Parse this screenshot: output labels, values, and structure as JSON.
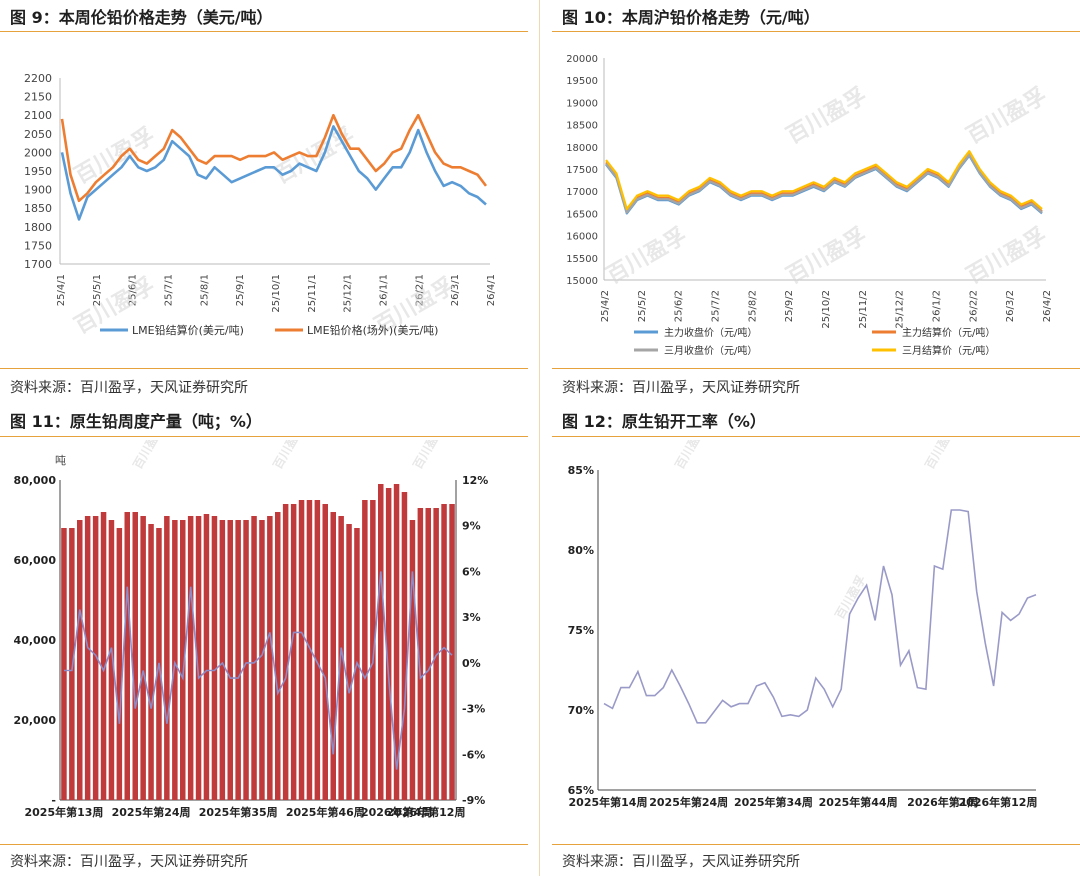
{
  "source_text": "资料来源：百川盈孚，天风证券研究所",
  "charts": [
    {
      "title": "图 9：本周伦铅价格走势（美元/吨）",
      "chart_data": {
        "type": "line",
        "y_ticks": [
          "2200",
          "2150",
          "2100",
          "2050",
          "2000",
          "1950",
          "1900",
          "1850",
          "1800",
          "1750",
          "1700"
        ],
        "ylim": [
          1700,
          2200
        ],
        "x_ticks": [
          "25/4/1",
          "25/5/1",
          "25/6/1",
          "25/7/1",
          "25/8/1",
          "25/9/1",
          "25/10/1",
          "25/11/1",
          "25/12/1",
          "26/1/1",
          "26/2/1",
          "26/3/1",
          "26/4/1"
        ],
        "series": [
          {
            "name": "LME铅结算价(美元/吨)",
            "color": "#5b9bd5",
            "values": [
              2000,
              1890,
              1820,
              1880,
              1900,
              1920,
              1940,
              1960,
              1990,
              1960,
              1950,
              1960,
              1980,
              2030,
              2010,
              1990,
              1940,
              1930,
              1960,
              1940,
              1920,
              1930,
              1940,
              1950,
              1960,
              1960,
              1940,
              1950,
              1970,
              1960,
              1950,
              2000,
              2070,
              2030,
              1990,
              1950,
              1930,
              1900,
              1930,
              1960,
              1960,
              2000,
              2060,
              2000,
              1950,
              1910,
              1920,
              1910,
              1890,
              1880,
              1860
            ]
          },
          {
            "name": "LME铅价格(场外)(美元/吨)",
            "color": "#ed7d31",
            "values": [
              2090,
              1940,
              1870,
              1890,
              1920,
              1940,
              1960,
              1990,
              2010,
              1980,
              1970,
              1990,
              2010,
              2060,
              2040,
              2010,
              1980,
              1970,
              1990,
              1990,
              1990,
              1980,
              1990,
              1990,
              1990,
              2000,
              1980,
              1990,
              2000,
              1990,
              1990,
              2040,
              2100,
              2050,
              2010,
              2010,
              1980,
              1950,
              1970,
              2000,
              2010,
              2060,
              2100,
              2050,
              2000,
              1970,
              1960,
              1960,
              1950,
              1940,
              1910
            ]
          }
        ]
      }
    },
    {
      "title": "图 10：本周沪铅价格走势（元/吨）",
      "chart_data": {
        "type": "line",
        "y_ticks": [
          "20000",
          "19500",
          "19000",
          "18500",
          "18000",
          "17500",
          "17000",
          "16500",
          "16000",
          "15500",
          "15000"
        ],
        "ylim": [
          15000,
          20000
        ],
        "x_ticks": [
          "25/4/2",
          "25/5/2",
          "25/6/2",
          "25/7/2",
          "25/8/2",
          "25/9/2",
          "25/10/2",
          "25/11/2",
          "25/12/2",
          "26/1/2",
          "26/2/2",
          "26/3/2",
          "26/4/2"
        ],
        "series": [
          {
            "name": "主力收盘价（元/吨）",
            "color": "#5b9bd5",
            "values": [
              17600,
              17300,
              16500,
              16800,
              16900,
              16800,
              16800,
              16700,
              16900,
              17000,
              17200,
              17100,
              16900,
              16800,
              16900,
              16900,
              16800,
              16900,
              16900,
              17000,
              17100,
              17000,
              17200,
              17100,
              17300,
              17400,
              17500,
              17300,
              17100,
              17000,
              17200,
              17400,
              17300,
              17100,
              17500,
              17800,
              17400,
              17100,
              16900,
              16800,
              16600,
              16700,
              16500
            ]
          },
          {
            "name": "主力结算价（元/吨）",
            "color": "#ed7d31",
            "values": [
              17650,
              17350,
              16550,
              16850,
              16950,
              16850,
              16850,
              16750,
              16950,
              17050,
              17250,
              17150,
              16950,
              16850,
              16950,
              16950,
              16850,
              16950,
              16950,
              17050,
              17150,
              17050,
              17250,
              17150,
              17350,
              17450,
              17550,
              17350,
              17150,
              17050,
              17250,
              17450,
              17350,
              17150,
              17550,
              17850,
              17450,
              17150,
              16950,
              16850,
              16650,
              16750,
              16550
            ]
          },
          {
            "name": "三月收盘价（元/吨）",
            "color": "#a5a5a5",
            "values": [
              17620,
              17320,
              16520,
              16820,
              16920,
              16820,
              16820,
              16720,
              16920,
              17020,
              17220,
              17120,
              16920,
              16820,
              16920,
              16920,
              16820,
              16920,
              16920,
              17020,
              17120,
              17020,
              17220,
              17120,
              17320,
              17420,
              17520,
              17320,
              17120,
              17020,
              17220,
              17420,
              17320,
              17120,
              17520,
              17820,
              17420,
              17120,
              16920,
              16820,
              16620,
              16720,
              16520
            ]
          },
          {
            "name": "三月结算价（元/吨）",
            "color": "#ffc000",
            "values": [
              17700,
              17400,
              16600,
              16900,
              17000,
              16900,
              16900,
              16800,
              17000,
              17100,
              17300,
              17200,
              17000,
              16900,
              17000,
              17000,
              16900,
              17000,
              17000,
              17100,
              17200,
              17100,
              17300,
              17200,
              17400,
              17500,
              17600,
              17400,
              17200,
              17100,
              17300,
              17500,
              17400,
              17200,
              17600,
              17900,
              17500,
              17200,
              17000,
              16900,
              16700,
              16800,
              16600
            ]
          }
        ]
      }
    },
    {
      "title": "图 11：原生铅周度产量（吨；%）",
      "chart_data": {
        "type": "bar",
        "y_unit": "吨",
        "y_ticks": [
          "80,000",
          "60,000",
          "40,000",
          "20,000",
          "-"
        ],
        "ylim": [
          0,
          80000
        ],
        "y2_ticks": [
          "12%",
          "9%",
          "6%",
          "3%",
          "0%",
          "-3%",
          "-6%",
          "-9%"
        ],
        "y2lim": [
          -9,
          12
        ],
        "x_ticks": [
          "2025年第13周",
          "2025年第24周",
          "2025年第35周",
          "2025年第46周",
          "2026年第4周",
          "2026年第12周"
        ],
        "bar_color": "#c0393b",
        "line_color": "#8c8cc8",
        "bar_values": [
          68000,
          68000,
          70000,
          71000,
          71000,
          72000,
          70000,
          68000,
          72000,
          72000,
          71000,
          69000,
          68000,
          71000,
          70000,
          70000,
          71000,
          71000,
          71500,
          71000,
          70000,
          70000,
          70000,
          70000,
          71000,
          70000,
          71000,
          72000,
          74000,
          74000,
          75000,
          75000,
          75000,
          74000,
          72000,
          71000,
          69000,
          68000,
          75000,
          75000,
          79000,
          78000,
          79000,
          77000,
          70000,
          73000,
          73000,
          73000,
          74000,
          74000
        ],
        "line_values": [
          -0.5,
          -0.5,
          3.5,
          1,
          0.5,
          -0.5,
          1,
          -4,
          5,
          -3,
          -0.5,
          -3,
          0,
          -4,
          0,
          -1,
          5,
          -1,
          -0.5,
          -0.5,
          0,
          -1,
          -1,
          0,
          0,
          0.5,
          2,
          -2,
          -1,
          2,
          2,
          1,
          0,
          -1,
          -6,
          1,
          -2,
          0,
          -1,
          0,
          6,
          -1,
          -7,
          -3,
          6,
          -1,
          -0.5,
          0.5,
          1,
          0.5
        ]
      }
    },
    {
      "title": "图 12：原生铅开工率（%）",
      "chart_data": {
        "type": "line",
        "y_ticks": [
          "85%",
          "80%",
          "75%",
          "70%",
          "65%"
        ],
        "ylim": [
          65,
          85
        ],
        "x_ticks": [
          "2025年第14周",
          "2025年第24周",
          "2025年第34周",
          "2025年第44周",
          "2026年第1周",
          "2026年第12周"
        ],
        "line_color": "#9a9ac8",
        "values": [
          70.4,
          70.1,
          71.4,
          71.4,
          72.4,
          70.9,
          70.9,
          71.4,
          72.5,
          71.5,
          70.4,
          69.2,
          69.2,
          69.9,
          70.6,
          70.2,
          70.4,
          70.4,
          71.5,
          71.7,
          70.8,
          69.6,
          69.7,
          69.6,
          70.0,
          72.0,
          71.3,
          70.2,
          71.3,
          76.0,
          77.0,
          77.8,
          75.6,
          79.0,
          77.2,
          72.8,
          73.7,
          71.4,
          71.3,
          79.0,
          78.8,
          82.5,
          82.5,
          82.4,
          77.4,
          74.2,
          71.5,
          76.1,
          75.6,
          76.0,
          77.0,
          77.2
        ]
      }
    }
  ]
}
